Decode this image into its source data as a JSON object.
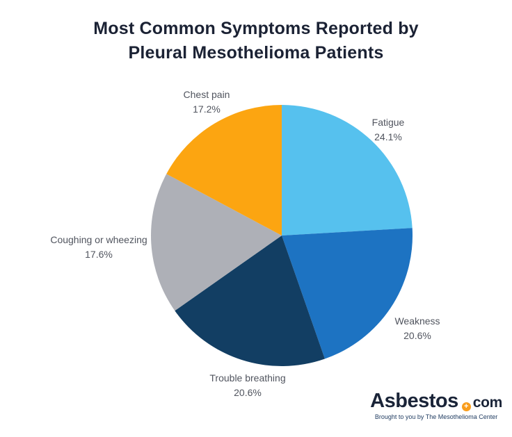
{
  "title": {
    "line1": "Most Common Symptoms Reported by",
    "line2": "Pleural Mesothelioma Patients"
  },
  "chart_data": {
    "type": "pie",
    "title": "Most Common Symptoms Reported by Pleural Mesothelioma Patients",
    "start_angle_deg": -90,
    "direction": "clockwise",
    "legend_position": "labels-around-pie",
    "slices": [
      {
        "label": "Fatigue",
        "value": 24.1,
        "display": "24.1%",
        "color": "#56c1ee"
      },
      {
        "label": "Weakness",
        "value": 20.6,
        "display": "20.6%",
        "color": "#1d73c2"
      },
      {
        "label": "Trouble breathing",
        "value": 20.6,
        "display": "20.6%",
        "color": "#123e63"
      },
      {
        "label": "Coughing or wheezing",
        "value": 17.6,
        "display": "17.6%",
        "color": "#aeb0b7"
      },
      {
        "label": "Chest pain",
        "value": 17.2,
        "display": "17.2%",
        "color": "#fca511"
      }
    ]
  },
  "logo": {
    "brand_main": "Asbestos",
    "brand_suffix": "com",
    "tagline": "Brought to you by The Mesothelioma Center",
    "dot_color": "#f99d1c",
    "text_color": "#1a2438",
    "plus_glyph": "+"
  },
  "colors": {
    "background": "#ffffff",
    "title_text": "#1b2234",
    "label_text": "#50545e"
  }
}
